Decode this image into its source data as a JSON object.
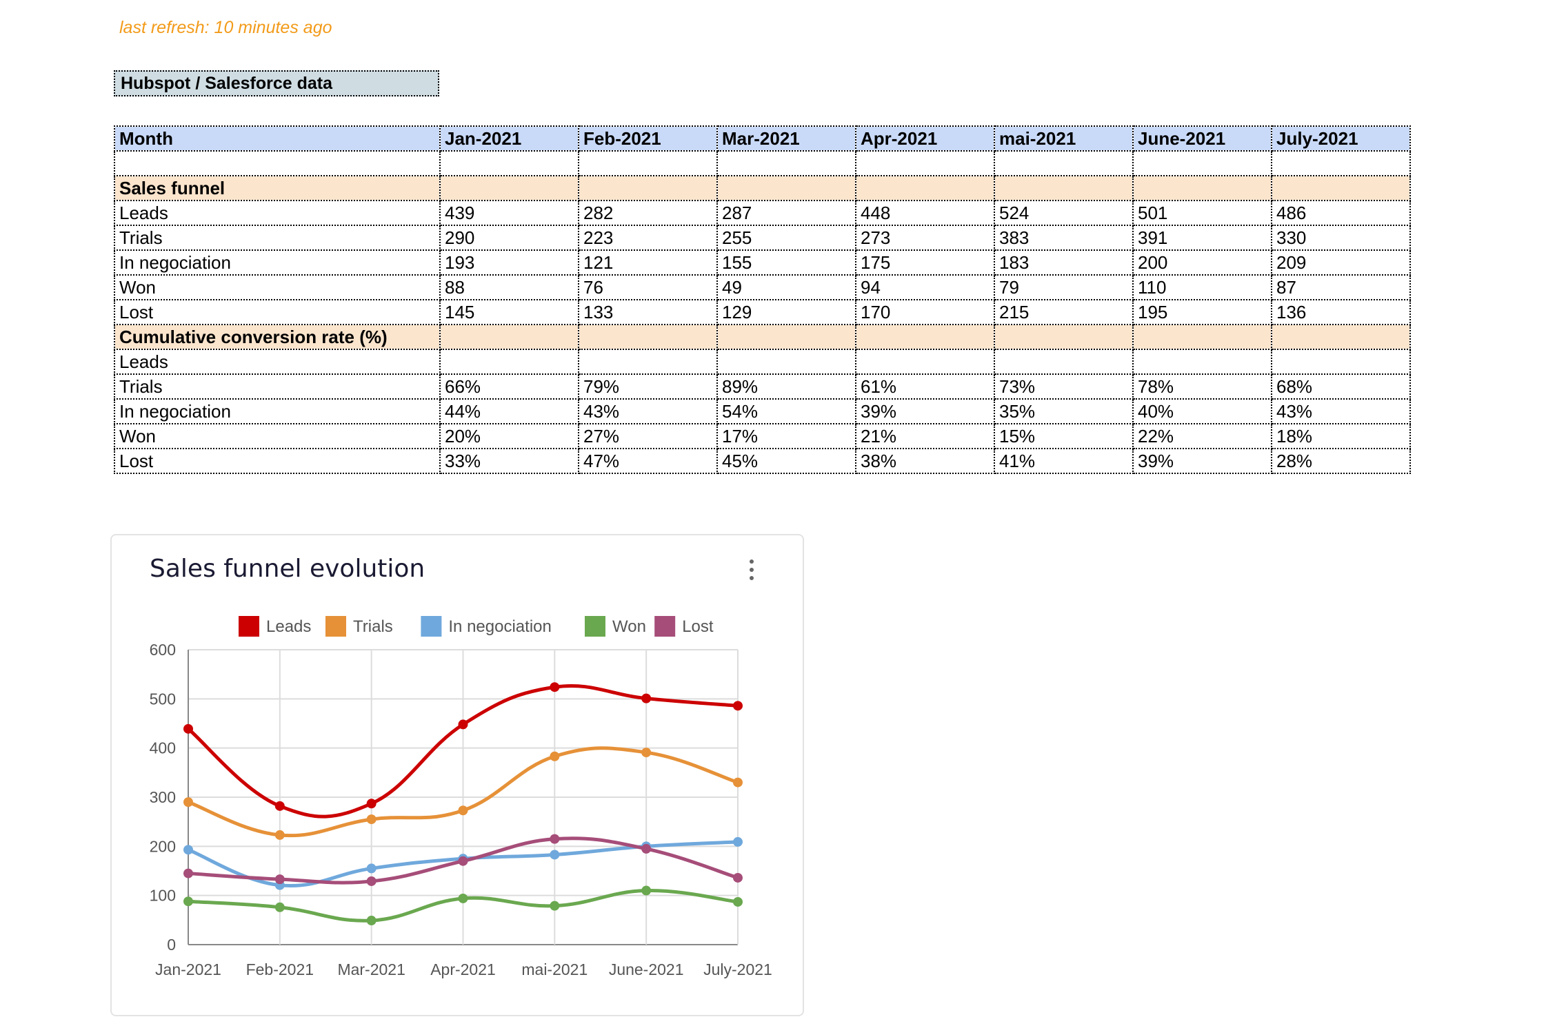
{
  "refresh_text": "last refresh: 10 minutes ago",
  "section_title": "Hubspot / Salesforce data",
  "table": {
    "header": [
      "Month",
      "Jan-2021",
      "Feb-2021",
      "Mar-2021",
      "Apr-2021",
      "mai-2021",
      "June-2021",
      "July-2021"
    ],
    "sections": [
      {
        "title": "Sales funnel",
        "rows": [
          {
            "label": "Leads",
            "values": [
              "439",
              "282",
              "287",
              "448",
              "524",
              "501",
              "486"
            ]
          },
          {
            "label": "Trials",
            "values": [
              "290",
              "223",
              "255",
              "273",
              "383",
              "391",
              "330"
            ]
          },
          {
            "label": "In negociation",
            "values": [
              "193",
              "121",
              "155",
              "175",
              "183",
              "200",
              "209"
            ]
          },
          {
            "label": "Won",
            "values": [
              "88",
              "76",
              "49",
              "94",
              "79",
              "110",
              "87"
            ]
          },
          {
            "label": "Lost",
            "values": [
              "145",
              "133",
              "129",
              "170",
              "215",
              "195",
              "136"
            ]
          }
        ]
      },
      {
        "title": "Cumulative conversion rate (%)",
        "rows": [
          {
            "label": "Leads",
            "values": [
              "",
              "",
              "",
              "",
              "",
              "",
              ""
            ]
          },
          {
            "label": "Trials",
            "values": [
              "66%",
              "79%",
              "89%",
              "61%",
              "73%",
              "78%",
              "68%"
            ]
          },
          {
            "label": "In negociation",
            "values": [
              "44%",
              "43%",
              "54%",
              "39%",
              "35%",
              "40%",
              "43%"
            ]
          },
          {
            "label": "Won",
            "values": [
              "20%",
              "27%",
              "17%",
              "21%",
              "15%",
              "22%",
              "18%"
            ]
          },
          {
            "label": "Lost",
            "values": [
              "33%",
              "47%",
              "45%",
              "38%",
              "41%",
              "39%",
              "28%"
            ]
          }
        ]
      }
    ]
  },
  "chart_data": {
    "type": "line",
    "title": "Sales funnel evolution",
    "categories": [
      "Jan-2021",
      "Feb-2021",
      "Mar-2021",
      "Apr-2021",
      "mai-2021",
      "June-2021",
      "July-2021"
    ],
    "ylim": [
      0,
      600
    ],
    "yticks": [
      0,
      100,
      200,
      300,
      400,
      500,
      600
    ],
    "grid": true,
    "legend_position": "top",
    "smooth": true,
    "series": [
      {
        "name": "Leads",
        "color": "#cc0000",
        "values": [
          439,
          282,
          287,
          448,
          524,
          501,
          486
        ]
      },
      {
        "name": "Trials",
        "color": "#e69138",
        "values": [
          290,
          223,
          255,
          273,
          383,
          391,
          330
        ]
      },
      {
        "name": "In negociation",
        "color": "#6fa8dc",
        "values": [
          193,
          121,
          155,
          175,
          183,
          200,
          209
        ]
      },
      {
        "name": "Won",
        "color": "#6aa84f",
        "values": [
          88,
          76,
          49,
          94,
          79,
          110,
          87
        ]
      },
      {
        "name": "Lost",
        "color": "#a64d79",
        "values": [
          145,
          133,
          129,
          170,
          215,
          195,
          136
        ]
      }
    ]
  }
}
